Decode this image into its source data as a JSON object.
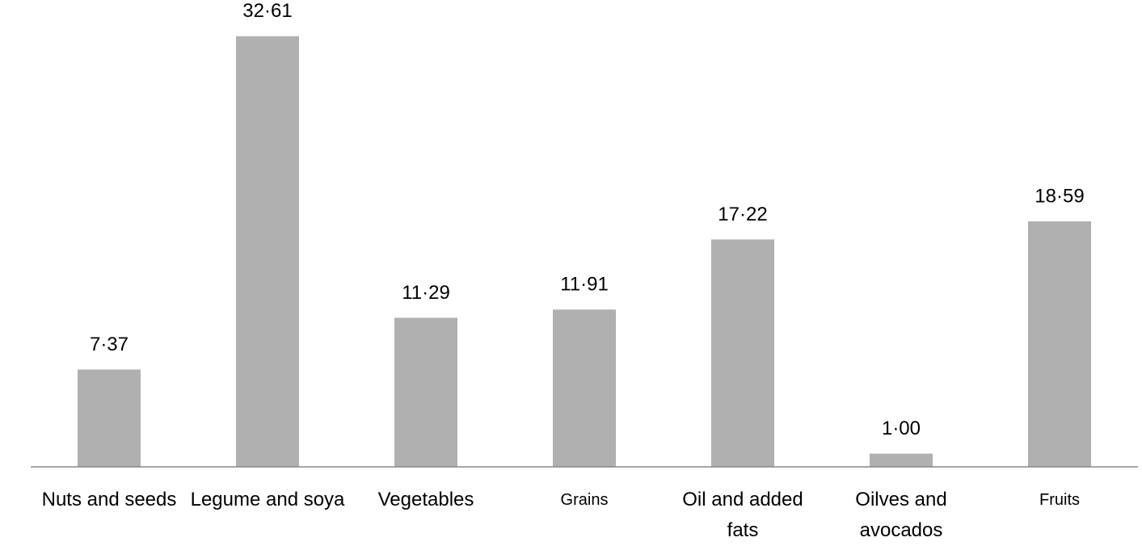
{
  "chart_data": {
    "type": "bar",
    "categories": [
      "Nuts and seeds",
      "Legume and soya",
      "Vegetables",
      "Grains",
      "Oil and added fats",
      "Oilves and avocados",
      "Fruits"
    ],
    "values": [
      7.37,
      32.61,
      11.29,
      11.91,
      17.22,
      1.0,
      18.59
    ],
    "value_labels": [
      "7·37",
      "32·61",
      "11·29",
      "11·91",
      "17·22",
      "1·00",
      "18·59"
    ],
    "color": "#b0b0b0",
    "ylim": [
      0,
      35
    ]
  }
}
